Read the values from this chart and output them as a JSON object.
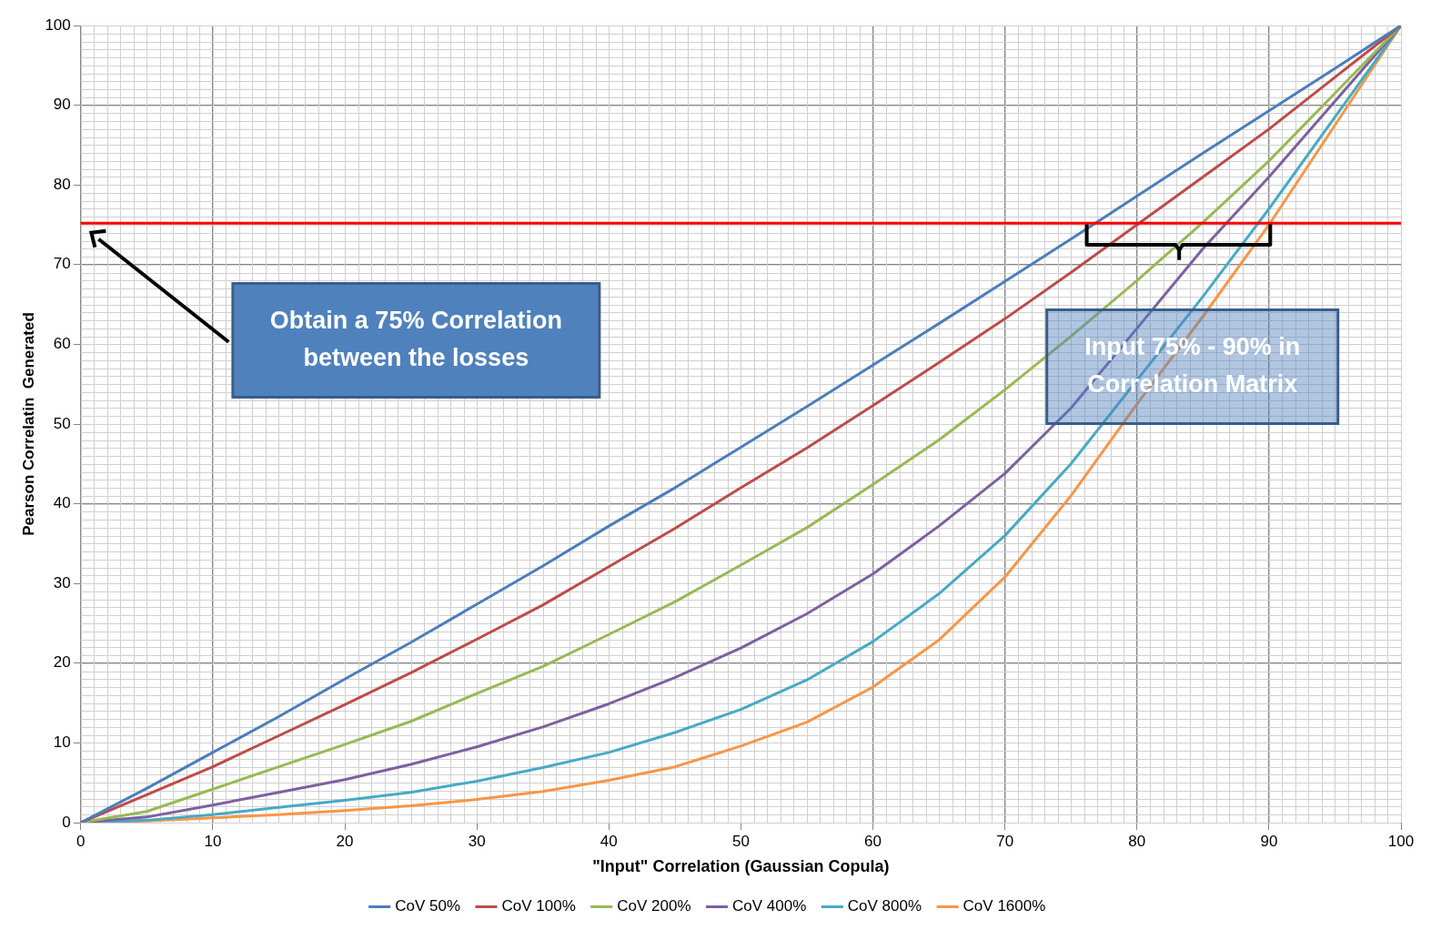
{
  "chart_data": {
    "type": "line",
    "xlabel": "\"Input\" Correlation (Gaussian Copula)",
    "ylabel": "Pearson Correlatin  Generated",
    "x": [
      0,
      5,
      10,
      15,
      20,
      25,
      30,
      35,
      40,
      45,
      50,
      55,
      60,
      65,
      70,
      75,
      80,
      85,
      90,
      95,
      100
    ],
    "series": [
      {
        "name": "CoV 50%",
        "color": "#4a7ebb",
        "values": [
          0,
          4.3,
          8.8,
          13.3,
          18,
          22.6,
          27.4,
          32.2,
          37.2,
          42,
          47.1,
          52.2,
          57.4,
          62.6,
          67.9,
          73.2,
          78.6,
          84,
          89.3,
          94.6,
          100
        ]
      },
      {
        "name": "CoV 100%",
        "color": "#be4b48",
        "values": [
          0,
          3.5,
          7,
          10.9,
          14.8,
          18.8,
          23,
          27.3,
          32.1,
          36.9,
          42,
          47,
          52.3,
          57.7,
          63.2,
          69,
          75,
          81,
          87,
          93.5,
          100
        ]
      },
      {
        "name": "CoV 200%",
        "color": "#98b954",
        "values": [
          0,
          1.4,
          4.2,
          7,
          9.8,
          12.7,
          16.2,
          19.6,
          23.6,
          27.7,
          32.3,
          37,
          42.4,
          48,
          54.3,
          61,
          68,
          75.3,
          83,
          91.5,
          100
        ]
      },
      {
        "name": "CoV 400%",
        "color": "#7d60a0",
        "values": [
          0,
          0.7,
          2.2,
          3.8,
          5.4,
          7.3,
          9.5,
          12,
          14.9,
          18.2,
          21.9,
          26.2,
          31.2,
          37.2,
          43.8,
          52,
          62,
          72,
          81,
          90.5,
          100
        ]
      },
      {
        "name": "CoV 800%",
        "color": "#46aac5",
        "values": [
          0,
          0.3,
          1,
          1.9,
          2.8,
          3.8,
          5.2,
          6.9,
          8.8,
          11.3,
          14.2,
          17.9,
          22.7,
          28.7,
          36,
          45,
          55.5,
          66,
          77,
          88.5,
          100
        ]
      },
      {
        "name": "CoV 1600%",
        "color": "#f79646",
        "values": [
          0,
          0.2,
          0.6,
          1,
          1.5,
          2.1,
          2.9,
          3.9,
          5.3,
          7,
          9.6,
          12.6,
          17,
          22.9,
          30.8,
          41,
          52.5,
          63.5,
          75,
          87.5,
          100
        ]
      }
    ],
    "xlim": [
      0,
      100
    ],
    "xticks": [
      0,
      10,
      20,
      30,
      40,
      50,
      60,
      70,
      80,
      90,
      100
    ],
    "ylim": [
      0,
      100
    ],
    "yticks": [
      0,
      10,
      20,
      30,
      40,
      50,
      60,
      70,
      80,
      90,
      100
    ],
    "ref_lines": [
      {
        "axis": "y",
        "value": 75.2,
        "color": "#ff0000"
      }
    ],
    "annotations": [
      "Obtain a 75% Correlation between the losses",
      "Input 75% - 90% in Correlation Matrix"
    ],
    "grid": true,
    "legend": "bottom",
    "marker": "none",
    "line_style": "solid"
  }
}
